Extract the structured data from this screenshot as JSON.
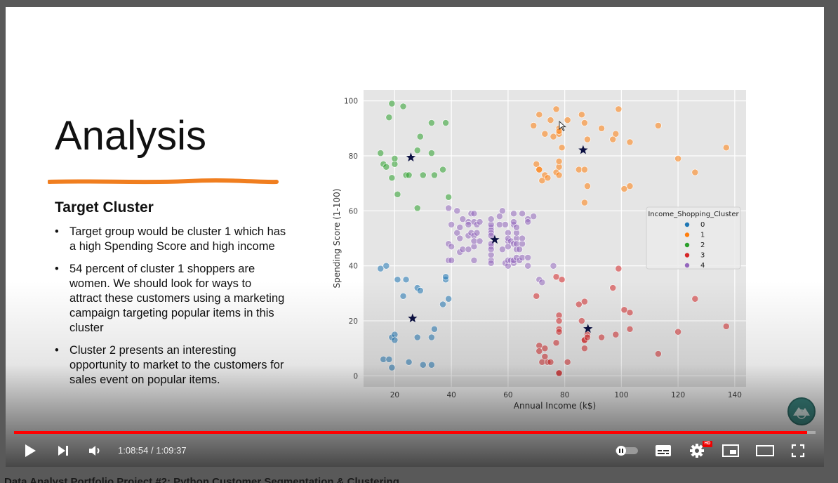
{
  "video_title": "Data Analyst Portfolio Project #2: Python Customer Segmentation & Clustering",
  "slide": {
    "title": "Analysis",
    "section_heading": "Target Cluster",
    "bullets": [
      "Target group would be cluster 1 which has a high Spending Score and high income",
      "54 percent of cluster 1  shoppers are women. We should look for ways to attract these customers using a marketing campaign targeting popular items in this cluster",
      "Cluster 2 presents an interesting opportunity to market to the customers for sales event on popular items."
    ],
    "accent_color": "#f07e1f"
  },
  "player": {
    "time_current": "1:08:54",
    "time_separator": " / ",
    "time_total": "1:09:37",
    "progress_fraction": 0.9896,
    "hd_badge": "HD",
    "icons": [
      "play-icon",
      "next-icon",
      "volume-icon",
      "autoplay-toggle-icon",
      "subtitles-icon",
      "settings-icon",
      "miniplayer-icon",
      "theater-icon",
      "fullscreen-icon"
    ]
  },
  "chart_data": {
    "type": "scatter",
    "xlabel": "Annual Income (k$)",
    "ylabel": "Spending Score (1-100)",
    "xlim": [
      9,
      144
    ],
    "ylim": [
      -4,
      104
    ],
    "xticks": [
      20,
      40,
      60,
      80,
      100,
      120,
      140
    ],
    "yticks": [
      0,
      20,
      40,
      60,
      80,
      100
    ],
    "grid": true,
    "legend_title": "Income_Shopping_Cluster",
    "legend_placement": "center-right",
    "series": [
      {
        "name": "0",
        "color": "#1f77b4",
        "points": [
          [
            15,
            39
          ],
          [
            16,
            6
          ],
          [
            17,
            40
          ],
          [
            18,
            6
          ],
          [
            19,
            3
          ],
          [
            19,
            14
          ],
          [
            20,
            15
          ],
          [
            20,
            13
          ],
          [
            21,
            35
          ],
          [
            23,
            29
          ],
          [
            24,
            35
          ],
          [
            25,
            5
          ],
          [
            28,
            32
          ],
          [
            28,
            14
          ],
          [
            29,
            31
          ],
          [
            30,
            4
          ],
          [
            33,
            4
          ],
          [
            33,
            14
          ],
          [
            34,
            17
          ],
          [
            37,
            26
          ],
          [
            38,
            35
          ],
          [
            38,
            36
          ],
          [
            39,
            28
          ]
        ]
      },
      {
        "name": "1",
        "color": "#ff7f0e",
        "points": [
          [
            69,
            91
          ],
          [
            70,
            77
          ],
          [
            71,
            95
          ],
          [
            71,
            75
          ],
          [
            71,
            75
          ],
          [
            72,
            71
          ],
          [
            73,
            88
          ],
          [
            73,
            73
          ],
          [
            74,
            72
          ],
          [
            75,
            93
          ],
          [
            76,
            87
          ],
          [
            77,
            97
          ],
          [
            77,
            74
          ],
          [
            78,
            90
          ],
          [
            78,
            88
          ],
          [
            78,
            76
          ],
          [
            78,
            89
          ],
          [
            78,
            78
          ],
          [
            78,
            73
          ],
          [
            79,
            83
          ],
          [
            81,
            93
          ],
          [
            85,
            75
          ],
          [
            86,
            95
          ],
          [
            87,
            63
          ],
          [
            87,
            75
          ],
          [
            87,
            92
          ],
          [
            88,
            86
          ],
          [
            88,
            69
          ],
          [
            93,
            90
          ],
          [
            97,
            86
          ],
          [
            98,
            88
          ],
          [
            99,
            97
          ],
          [
            101,
            68
          ],
          [
            103,
            85
          ],
          [
            103,
            69
          ],
          [
            113,
            91
          ],
          [
            120,
            79
          ],
          [
            126,
            74
          ],
          [
            137,
            83
          ]
        ]
      },
      {
        "name": "2",
        "color": "#2ca02c",
        "points": [
          [
            15,
            81
          ],
          [
            16,
            77
          ],
          [
            17,
            76
          ],
          [
            18,
            94
          ],
          [
            19,
            72
          ],
          [
            19,
            99
          ],
          [
            20,
            77
          ],
          [
            20,
            79
          ],
          [
            21,
            66
          ],
          [
            23,
            98
          ],
          [
            24,
            73
          ],
          [
            25,
            73
          ],
          [
            28,
            82
          ],
          [
            28,
            61
          ],
          [
            29,
            87
          ],
          [
            30,
            73
          ],
          [
            33,
            92
          ],
          [
            33,
            81
          ],
          [
            34,
            73
          ],
          [
            37,
            75
          ],
          [
            38,
            92
          ],
          [
            39,
            65
          ]
        ]
      },
      {
        "name": "3",
        "color": "#d62728",
        "points": [
          [
            70,
            29
          ],
          [
            71,
            11
          ],
          [
            71,
            9
          ],
          [
            72,
            5
          ],
          [
            73,
            7
          ],
          [
            73,
            10
          ],
          [
            74,
            5
          ],
          [
            75,
            5
          ],
          [
            77,
            12
          ],
          [
            77,
            36
          ],
          [
            78,
            1
          ],
          [
            78,
            1
          ],
          [
            78,
            22
          ],
          [
            78,
            17
          ],
          [
            78,
            20
          ],
          [
            78,
            16
          ],
          [
            79,
            35
          ],
          [
            81,
            5
          ],
          [
            85,
            26
          ],
          [
            86,
            20
          ],
          [
            87,
            27
          ],
          [
            87,
            13
          ],
          [
            87,
            10
          ],
          [
            87,
            13
          ],
          [
            88,
            15
          ],
          [
            88,
            14
          ],
          [
            93,
            14
          ],
          [
            97,
            32
          ],
          [
            98,
            15
          ],
          [
            99,
            39
          ],
          [
            101,
            24
          ],
          [
            103,
            17
          ],
          [
            103,
            23
          ],
          [
            113,
            8
          ],
          [
            120,
            16
          ],
          [
            126,
            28
          ],
          [
            137,
            18
          ]
        ]
      },
      {
        "name": "4",
        "color": "#9467bd",
        "points": [
          [
            39,
            61
          ],
          [
            39,
            48
          ],
          [
            39,
            42
          ],
          [
            40,
            55
          ],
          [
            40,
            47
          ],
          [
            40,
            42
          ],
          [
            42,
            52
          ],
          [
            42,
            60
          ],
          [
            43,
            54
          ],
          [
            43,
            45
          ],
          [
            43,
            50
          ],
          [
            44,
            46
          ],
          [
            44,
            57
          ],
          [
            46,
            51
          ],
          [
            46,
            46
          ],
          [
            46,
            56
          ],
          [
            46,
            55
          ],
          [
            47,
            52
          ],
          [
            47,
            59
          ],
          [
            48,
            51
          ],
          [
            48,
            47
          ],
          [
            48,
            59
          ],
          [
            48,
            42
          ],
          [
            48,
            49
          ],
          [
            48,
            56
          ],
          [
            49,
            52
          ],
          [
            49,
            55
          ],
          [
            50,
            49
          ],
          [
            50,
            56
          ],
          [
            54,
            47
          ],
          [
            54,
            54
          ],
          [
            54,
            53
          ],
          [
            54,
            48
          ],
          [
            54,
            52
          ],
          [
            54,
            42
          ],
          [
            54,
            51
          ],
          [
            54,
            55
          ],
          [
            54,
            41
          ],
          [
            54,
            44
          ],
          [
            54,
            57
          ],
          [
            54,
            46
          ],
          [
            57,
            58
          ],
          [
            57,
            55
          ],
          [
            58,
            60
          ],
          [
            58,
            46
          ],
          [
            59,
            55
          ],
          [
            59,
            41
          ],
          [
            60,
            49
          ],
          [
            60,
            40
          ],
          [
            60,
            42
          ],
          [
            60,
            52
          ],
          [
            60,
            47
          ],
          [
            60,
            50
          ],
          [
            61,
            42
          ],
          [
            61,
            49
          ],
          [
            62,
            41
          ],
          [
            62,
            48
          ],
          [
            62,
            59
          ],
          [
            62,
            55
          ],
          [
            62,
            56
          ],
          [
            62,
            42
          ],
          [
            63,
            50
          ],
          [
            63,
            46
          ],
          [
            63,
            43
          ],
          [
            63,
            48
          ],
          [
            63,
            52
          ],
          [
            63,
            54
          ],
          [
            64,
            42
          ],
          [
            64,
            46
          ],
          [
            65,
            48
          ],
          [
            65,
            50
          ],
          [
            65,
            43
          ],
          [
            65,
            59
          ],
          [
            67,
            43
          ],
          [
            67,
            57
          ],
          [
            67,
            56
          ],
          [
            67,
            40
          ],
          [
            69,
            58
          ],
          [
            71,
            35
          ],
          [
            72,
            34
          ],
          [
            76,
            40
          ]
        ]
      }
    ],
    "centroids": {
      "marker": "star",
      "color": "#0b1042",
      "points": [
        [
          25.7,
          79.4
        ],
        [
          86.5,
          82.1
        ],
        [
          55.3,
          49.5
        ],
        [
          26.3,
          20.9
        ],
        [
          88.2,
          17.1
        ]
      ]
    }
  }
}
